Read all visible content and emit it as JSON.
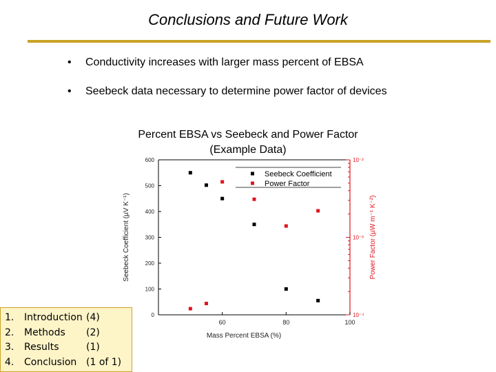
{
  "slide": {
    "title": "Conclusions and Future Work",
    "bullets": [
      "Conductivity increases with larger mass percent of EBSA",
      "Seebeck data necessary to determine power factor of devices"
    ],
    "bullet_glyph": "•"
  },
  "chart_data": {
    "type": "scatter",
    "title": "Percent EBSA vs Seebeck and Power Factor",
    "subtitle": "(Example Data)",
    "xlabel": "Mass Percent EBSA (%)",
    "ylabel": "Seebeck Coefficient (µV K⁻¹)",
    "y2label": "Power Factor (µW m⁻¹ K⁻²)",
    "xlim": [
      40,
      100
    ],
    "ylim": [
      0,
      600
    ],
    "y2scale": "log",
    "y2lim": [
      0.0001,
      0.01
    ],
    "x_ticks": [
      "60",
      "80",
      "100"
    ],
    "y_ticks": [
      "0",
      "100",
      "200",
      "300",
      "400",
      "500",
      "600"
    ],
    "y2_ticks": [
      "10⁻⁴",
      "10⁻³",
      "10⁻²"
    ],
    "grid": false,
    "legend_position": "top-right",
    "series": [
      {
        "name": "Seebeck Coefficient",
        "axis": "left",
        "color": "#000000",
        "x": [
          50,
          55,
          60,
          70,
          80,
          90
        ],
        "y": [
          550,
          502,
          450,
          350,
          100,
          55
        ]
      },
      {
        "name": "Power Factor",
        "axis": "right",
        "color": "#e0141e",
        "x": [
          50,
          55,
          60,
          70,
          80,
          90
        ],
        "y": [
          0.00012,
          0.00014,
          0.0052,
          0.0031,
          0.0014,
          0.0022
        ]
      }
    ]
  },
  "nav": {
    "items": [
      {
        "num": "1.",
        "label": "Introduction",
        "count": "(4)"
      },
      {
        "num": "2.",
        "label": "Methods",
        "count": "(2)"
      },
      {
        "num": "3.",
        "label": "Results",
        "count": "(1)"
      },
      {
        "num": "4.",
        "label": "Conclusion",
        "count": "(1 of 1)"
      }
    ]
  }
}
